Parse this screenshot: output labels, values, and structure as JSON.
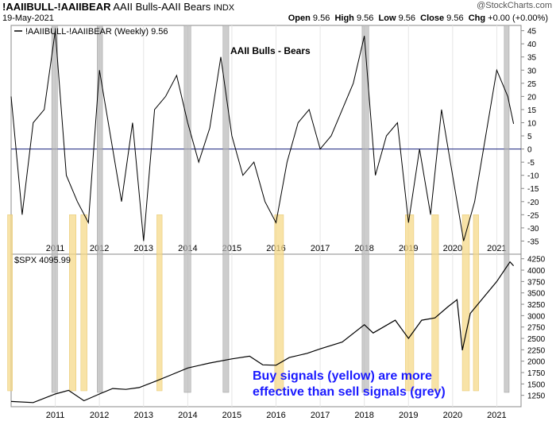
{
  "header": {
    "symbol": "!AAIIBULL-!AAIIBEAR",
    "name": "AAII Bulls-AAII Bears",
    "exchange": "INDX",
    "date": "19-May-2021",
    "credit": "@StockCharts.com",
    "open_label": "Open",
    "open": "9.56",
    "high_label": "High",
    "high": "9.56",
    "low_label": "Low",
    "low": "9.56",
    "close_label": "Close",
    "close": "9.56",
    "chg_label": "Chg",
    "chg": "+0.00 (+0.00%)"
  },
  "chart_data": [
    {
      "type": "line",
      "title": "AAII Bulls - Bears",
      "legend": "!AAIIBULL-!AAIIBEAR (Weekly) 9.56",
      "ylim": [
        -40,
        47
      ],
      "y_ticks": [
        -35,
        -30,
        -25,
        -20,
        -15,
        -10,
        -5,
        0,
        5,
        10,
        15,
        20,
        25,
        30,
        35,
        40,
        45
      ],
      "x_ticks": [
        "2011",
        "2012",
        "2013",
        "2014",
        "2015",
        "2016",
        "2017",
        "2018",
        "2019",
        "2020",
        "2021"
      ],
      "reference_line": 0,
      "x": [
        2010.0,
        2010.25,
        2010.5,
        2010.75,
        2011.0,
        2011.25,
        2011.5,
        2011.75,
        2012.0,
        2012.25,
        2012.5,
        2012.75,
        2013.0,
        2013.25,
        2013.5,
        2013.75,
        2014.0,
        2014.25,
        2014.5,
        2014.75,
        2015.0,
        2015.25,
        2015.5,
        2015.75,
        2016.0,
        2016.25,
        2016.5,
        2016.75,
        2017.0,
        2017.25,
        2017.5,
        2017.75,
        2018.0,
        2018.25,
        2018.5,
        2018.75,
        2019.0,
        2019.25,
        2019.5,
        2019.75,
        2020.0,
        2020.25,
        2020.5,
        2020.75,
        2021.0,
        2021.25,
        2021.38
      ],
      "y": [
        20,
        -25,
        10,
        15,
        45,
        -10,
        -20,
        -28,
        30,
        5,
        -20,
        10,
        -35,
        15,
        20,
        28,
        10,
        -5,
        8,
        35,
        5,
        -10,
        -5,
        -20,
        -28,
        -5,
        10,
        15,
        0,
        5,
        15,
        25,
        43,
        -10,
        5,
        10,
        -28,
        0,
        -25,
        15,
        -10,
        -35,
        -20,
        5,
        30,
        20,
        9.56
      ],
      "buy_signals": [
        [
          2009.92,
          2010.03
        ],
        [
          2011.32,
          2011.47
        ],
        [
          2011.58,
          2011.72
        ],
        [
          2013.3,
          2013.42
        ],
        [
          2015.97,
          2016.17
        ],
        [
          2018.93,
          2019.12
        ],
        [
          2019.53,
          2019.68
        ],
        [
          2020.22,
          2020.38
        ],
        [
          2020.47,
          2020.59
        ]
      ],
      "sell_signals": [
        [
          2010.92,
          2011.05
        ],
        [
          2011.95,
          2012.07
        ],
        [
          2013.92,
          2014.07
        ],
        [
          2014.8,
          2014.93
        ],
        [
          2017.95,
          2018.1
        ],
        [
          2021.17,
          2021.28
        ]
      ]
    },
    {
      "type": "line",
      "legend": "$SPX 4095.99",
      "ylim": [
        1000,
        4350
      ],
      "y_ticks": [
        1250,
        1500,
        1750,
        2000,
        2250,
        2500,
        2750,
        3000,
        3250,
        3500,
        3750,
        4000,
        4250
      ],
      "x_ticks": [
        "2011",
        "2012",
        "2013",
        "2014",
        "2015",
        "2016",
        "2017",
        "2018",
        "2019",
        "2020",
        "2021"
      ],
      "annotation": "Buy signals (yellow) are more\neffective than sell signals (grey)",
      "x": [
        2010.0,
        2010.5,
        2011.0,
        2011.3,
        2011.65,
        2012.0,
        2012.3,
        2012.6,
        2012.9,
        2013.3,
        2013.6,
        2014.0,
        2014.5,
        2015.0,
        2015.4,
        2015.7,
        2016.0,
        2016.3,
        2016.7,
        2017.0,
        2017.5,
        2018.0,
        2018.2,
        2018.7,
        2019.0,
        2019.3,
        2019.6,
        2019.9,
        2020.1,
        2020.22,
        2020.4,
        2020.7,
        2021.0,
        2021.3,
        2021.38
      ],
      "y": [
        1115,
        1090,
        1280,
        1360,
        1130,
        1280,
        1400,
        1380,
        1420,
        1570,
        1690,
        1850,
        1960,
        2050,
        2110,
        1920,
        1910,
        2080,
        2170,
        2270,
        2420,
        2800,
        2620,
        2900,
        2500,
        2900,
        2950,
        3200,
        3350,
        2240,
        3050,
        3400,
        3750,
        4180,
        4095.99
      ]
    }
  ]
}
